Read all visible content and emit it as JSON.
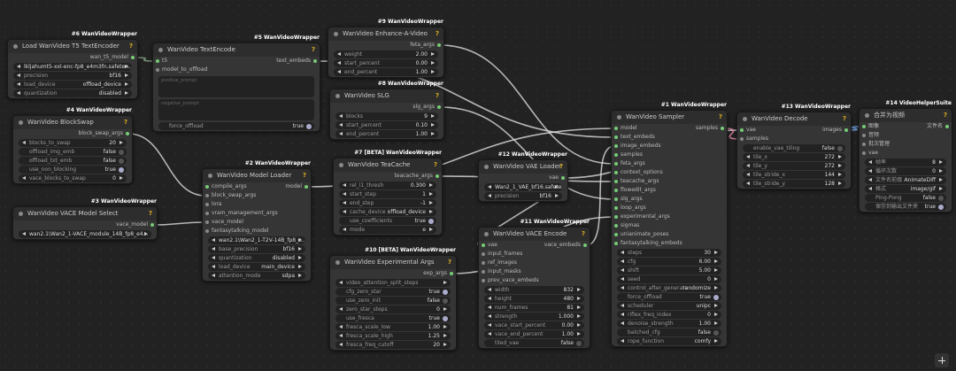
{
  "nodes": [
    {
      "badge": "#6 WanVideoWrapper",
      "title": "Load WanVideo T5 TextEncoder",
      "inputs": [],
      "outputs": [
        "wan_t5_model"
      ],
      "widgets": [
        {
          "value": "lkljahumt5-xxl-enc-fp8_e4m3fn.safeten..."
        },
        {
          "label": "precision",
          "value": "bf16"
        },
        {
          "label": "load_device",
          "value": "offload_device"
        },
        {
          "label": "quantization",
          "value": "disabled"
        }
      ]
    },
    {
      "badge": "#5 WanVideoWrapper",
      "title": "WanVideo TextEncode",
      "inputs": [
        "t5",
        "model_to_offload"
      ],
      "outputs": [
        "text_embeds"
      ],
      "textareas": [
        "positive_prompt",
        "negative_prompt"
      ],
      "widgets": [
        {
          "label": "force_offload",
          "value": "true"
        }
      ]
    },
    {
      "badge": "#9 WanVideoWrapper",
      "title": "WanVideo Enhance-A-Video",
      "inputs": [],
      "outputs": [
        "feta_args"
      ],
      "widgets": [
        {
          "label": "weight",
          "value": "2.00"
        },
        {
          "label": "start_percent",
          "value": "0.00"
        },
        {
          "label": "end_percent",
          "value": "1.00"
        }
      ]
    },
    {
      "badge": "#8 WanVideoWrapper",
      "title": "WanVideo SLG",
      "inputs": [],
      "outputs": [
        "slg_args"
      ],
      "widgets": [
        {
          "label": "blocks",
          "value": "9"
        },
        {
          "label": "start_percent",
          "value": "0.10"
        },
        {
          "label": "end_percent",
          "value": "1.00"
        }
      ]
    },
    {
      "badge": "#4 WanVideoWrapper",
      "title": "WanVideo BlockSwap",
      "inputs": [],
      "outputs": [
        "block_swap_args"
      ],
      "widgets": [
        {
          "label": "blocks_to_swap",
          "value": "20"
        },
        {
          "label": "offload_img_emb",
          "value": "false"
        },
        {
          "label": "offload_txt_emb",
          "value": "false"
        },
        {
          "label": "use_non_blocking",
          "value": "true"
        },
        {
          "label": "vace_blocks_to_swap",
          "value": "0"
        }
      ]
    },
    {
      "badge": "#3 WanVideoWrapper",
      "title": "WanVideo VACE Model Select",
      "inputs": [],
      "outputs": [
        "vace_model"
      ],
      "widgets": [
        {
          "value": "wan2.1\\Wan2_1-VACE_module_14B_fp8_e4..."
        }
      ]
    },
    {
      "badge": "#2 WanVideoWrapper",
      "title": "WanVideo Model Loader",
      "inputs": [
        "compile_args",
        "block_swap_args",
        "lora",
        "vram_management_args",
        "vace_model",
        "fantasytalking_model"
      ],
      "outputs": [
        "model"
      ],
      "widgets": [
        {
          "value": "wan2.1\\Wan2_1-T2V-14B_fp8_e..."
        },
        {
          "label": "base_precision",
          "value": "bf16"
        },
        {
          "label": "quantization",
          "value": "disabled"
        },
        {
          "label": "load_device",
          "value": "main_device"
        },
        {
          "label": "attention_mode",
          "value": "sdpa"
        }
      ]
    },
    {
      "badge": "#7 [BETA] WanVideoWrapper",
      "title": "WanVideo TeaCache",
      "inputs": [],
      "outputs": [
        "teacache_args"
      ],
      "widgets": [
        {
          "label": "rel_l1_thresh",
          "value": "0.300"
        },
        {
          "label": "start_step",
          "value": "1"
        },
        {
          "label": "end_step",
          "value": "-1"
        },
        {
          "label": "cache_device",
          "value": "offload_device"
        },
        {
          "label": "use_coefficients",
          "value": "true"
        },
        {
          "label": "mode",
          "value": "e"
        }
      ]
    },
    {
      "badge": "#10 [BETA] WanVideoWrapper",
      "title": "WanVideo Experimental Args",
      "inputs": [],
      "outputs": [
        "exp_args"
      ],
      "widgets": [
        {
          "label": "video_attention_split_steps"
        },
        {
          "label": "cfg_zero_star",
          "value": "true"
        },
        {
          "label": "use_zero_init",
          "value": "false"
        },
        {
          "label": "zero_star_steps",
          "value": "0"
        },
        {
          "label": "use_fresca",
          "value": "true"
        },
        {
          "label": "fresca_scale_low",
          "value": "1.00"
        },
        {
          "label": "fresca_scale_high",
          "value": "1.25"
        },
        {
          "label": "fresca_freq_cutoff",
          "value": "20"
        }
      ]
    },
    {
      "badge": "#12 WanVideoWrapper",
      "title": "WanVideo VAE Loader",
      "inputs": [],
      "outputs": [
        "vae"
      ],
      "widgets": [
        {
          "value": "Wan2_1_VAE_bf16.safetensors"
        },
        {
          "label": "precision",
          "value": "bf16"
        }
      ]
    },
    {
      "badge": "#11 WanVideoWrapper",
      "title": "WanVideo VACE Encode",
      "inputs": [
        "vae",
        "input_frames",
        "ref_images",
        "input_masks",
        "prev_vace_embeds"
      ],
      "outputs": [
        "vace_embeds"
      ],
      "widgets": [
        {
          "label": "width",
          "value": "832"
        },
        {
          "label": "height",
          "value": "480"
        },
        {
          "label": "num_frames",
          "value": "81"
        },
        {
          "label": "strength",
          "value": "1.000"
        },
        {
          "label": "vace_start_percent",
          "value": "0.00"
        },
        {
          "label": "vace_end_percent",
          "value": "1.00"
        },
        {
          "label": "tiled_vae",
          "value": "false"
        }
      ]
    },
    {
      "badge": "#1 WanVideoWrapper",
      "title": "WanVideo Sampler",
      "inputs": [
        "model",
        "text_embeds",
        "image_embeds",
        "samples",
        "feta_args",
        "context_options",
        "teacache_args",
        "flowedit_args",
        "slg_args",
        "loop_args",
        "experimental_args",
        "sigmas",
        "unianimate_poses",
        "fantasytalking_embeds"
      ],
      "outputs": [
        "samples"
      ],
      "widgets": [
        {
          "label": "steps",
          "value": "30"
        },
        {
          "label": "cfg",
          "value": "6.00"
        },
        {
          "label": "shift",
          "value": "5.00"
        },
        {
          "label": "seed",
          "value": "0"
        },
        {
          "label": "control_after_generate",
          "value": "randomize"
        },
        {
          "label": "force_offload",
          "value": "true"
        },
        {
          "label": "scheduler",
          "value": "unipc"
        },
        {
          "label": "riflex_freq_index",
          "value": "0"
        },
        {
          "label": "denoise_strength",
          "value": "1.00"
        },
        {
          "label": "batched_cfg",
          "value": "false"
        },
        {
          "label": "rope_function",
          "value": "comfy"
        }
      ]
    },
    {
      "badge": "#13 WanVideoWrapper",
      "title": "WanVideo Decode",
      "inputs": [
        "vae",
        "samples"
      ],
      "outputs": [
        "images"
      ],
      "widgets": [
        {
          "label": "enable_vae_tiling",
          "value": "false"
        },
        {
          "label": "tile_x",
          "value": "272"
        },
        {
          "label": "tile_y",
          "value": "272"
        },
        {
          "label": "tile_stride_x",
          "value": "144"
        },
        {
          "label": "tile_stride_y",
          "value": "128"
        }
      ]
    },
    {
      "badge": "#14 VideoHelperSuite",
      "title": "合并为视频",
      "inputs": [
        "图像",
        "音频",
        "批次管理",
        "vae"
      ],
      "outputs": [
        "文件名"
      ],
      "widgets": [
        {
          "label": "帧率",
          "value": "8"
        },
        {
          "label": "循环次数",
          "value": "0"
        },
        {
          "label": "文件名前缀",
          "value": "AnimateDiff"
        },
        {
          "label": "格式",
          "value": "image/gif"
        },
        {
          "label": "Ping-Pong",
          "value": "false"
        },
        {
          "label": "保存到输出文件夹",
          "value": "true"
        }
      ]
    }
  ]
}
